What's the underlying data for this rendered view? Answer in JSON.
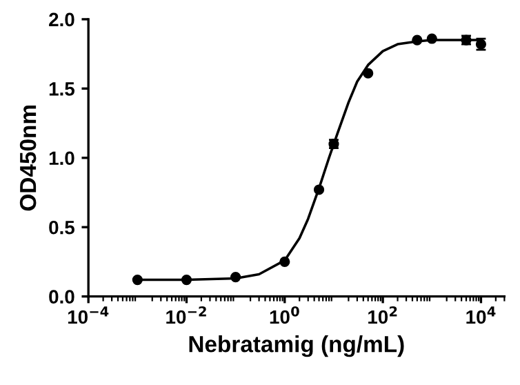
{
  "chart_data": {
    "type": "scatter",
    "xlabel": "Nebratamig (ng/mL)",
    "ylabel": "OD450nm",
    "log": "x",
    "grid": false,
    "legend": false,
    "xlim": [
      0.0001,
      30000
    ],
    "ylim": [
      0,
      2.0
    ],
    "xticks": [
      {
        "value": 0.0001,
        "label": "10$^{−4}$"
      },
      {
        "value": 0.01,
        "label": "10$^{−2}$"
      },
      {
        "value": 1,
        "label": "10$^{0}$"
      },
      {
        "value": 100,
        "label": "10$^{2}$"
      },
      {
        "value": 10000,
        "label": "10$^{4}$"
      }
    ],
    "yticks": [
      {
        "value": 0,
        "label": "0.0"
      },
      {
        "value": 0.5,
        "label": "0.5"
      },
      {
        "value": 1.0,
        "label": "1.0"
      },
      {
        "value": 1.5,
        "label": "1.5"
      },
      {
        "value": 2.0,
        "label": "2.0"
      }
    ],
    "series": [
      {
        "color": "#000000",
        "marker": "circle",
        "x": [
          0.001,
          0.01,
          0.1,
          1,
          5,
          10,
          50,
          500,
          1000,
          5000,
          10000
        ],
        "values": [
          0.12,
          0.12,
          0.14,
          0.25,
          0.77,
          1.1,
          1.61,
          1.85,
          1.86,
          1.85,
          1.82
        ],
        "errors": [
          null,
          null,
          null,
          null,
          null,
          0.03,
          null,
          null,
          null,
          0.03,
          0.04
        ]
      },
      {
        "type": "line",
        "color": "#000000",
        "marker": "none",
        "line_style": "solid",
        "x": [
          0.001,
          0.01,
          0.1,
          0.3,
          1,
          2,
          3,
          5,
          8,
          12,
          20,
          30,
          50,
          100,
          200,
          500,
          1000,
          10000
        ],
        "values": [
          0.12,
          0.12,
          0.13,
          0.16,
          0.26,
          0.42,
          0.56,
          0.78,
          1.0,
          1.18,
          1.4,
          1.55,
          1.67,
          1.77,
          1.82,
          1.84,
          1.85,
          1.85
        ]
      }
    ]
  }
}
